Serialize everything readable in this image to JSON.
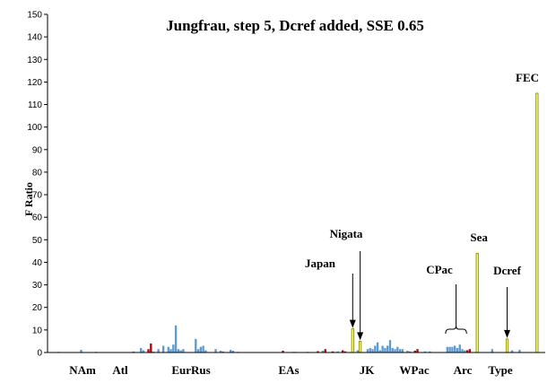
{
  "chart_data": {
    "type": "bar",
    "title": "Jungfrau, step 5, Dcref added, SSE 0.65",
    "ylabel": "F Ratio",
    "xlabel": "",
    "ylim": [
      0,
      150
    ],
    "yticks": [
      0,
      10,
      20,
      30,
      40,
      50,
      60,
      70,
      80,
      90,
      100,
      110,
      120,
      130,
      140,
      150
    ],
    "grid": false,
    "colors": {
      "blue": "#5b9bd5",
      "red": "#c00000",
      "yellow": "#ffff66",
      "yellow_edge": "#7f7f00"
    },
    "region_labels": [
      "NAm",
      "Atl",
      "EurRus",
      "EAs",
      "JK",
      "WPac",
      "Arc",
      "Type"
    ],
    "annotations": [
      "Japan",
      "Nigata",
      "CPac",
      "Sea",
      "Dcref",
      "FEC"
    ],
    "bars": [
      {
        "x": 3,
        "value": 0.3,
        "color": "blue"
      },
      {
        "x": 12,
        "value": 1.2,
        "color": "blue"
      },
      {
        "x": 18,
        "value": 0.3,
        "color": "blue"
      },
      {
        "x": 24,
        "value": 0.2,
        "color": "blue"
      },
      {
        "x": 33,
        "value": 0.5,
        "color": "blue"
      },
      {
        "x": 36,
        "value": 2.0,
        "color": "blue"
      },
      {
        "x": 37,
        "value": 1.0,
        "color": "blue"
      },
      {
        "x": 39,
        "value": 1.5,
        "color": "red"
      },
      {
        "x": 40,
        "value": 4.0,
        "color": "red"
      },
      {
        "x": 41,
        "value": 0.4,
        "color": "blue"
      },
      {
        "x": 43,
        "value": 1.5,
        "color": "blue"
      },
      {
        "x": 45,
        "value": 3.0,
        "color": "blue"
      },
      {
        "x": 47,
        "value": 2.5,
        "color": "blue"
      },
      {
        "x": 48,
        "value": 1.5,
        "color": "blue"
      },
      {
        "x": 49,
        "value": 3.5,
        "color": "blue"
      },
      {
        "x": 50,
        "value": 12.0,
        "color": "blue"
      },
      {
        "x": 51,
        "value": 1.5,
        "color": "blue"
      },
      {
        "x": 52,
        "value": 1.0,
        "color": "blue"
      },
      {
        "x": 53,
        "value": 1.5,
        "color": "blue"
      },
      {
        "x": 58,
        "value": 6.0,
        "color": "blue"
      },
      {
        "x": 59,
        "value": 1.5,
        "color": "blue"
      },
      {
        "x": 60,
        "value": 2.5,
        "color": "blue"
      },
      {
        "x": 61,
        "value": 3.0,
        "color": "blue"
      },
      {
        "x": 62,
        "value": 1.0,
        "color": "blue"
      },
      {
        "x": 66,
        "value": 1.5,
        "color": "blue"
      },
      {
        "x": 68,
        "value": 0.8,
        "color": "blue"
      },
      {
        "x": 69,
        "value": 0.5,
        "color": "blue"
      },
      {
        "x": 72,
        "value": 1.2,
        "color": "blue"
      },
      {
        "x": 73,
        "value": 0.8,
        "color": "blue"
      },
      {
        "x": 75,
        "value": 0.3,
        "color": "blue"
      },
      {
        "x": 93,
        "value": 0.8,
        "color": "red"
      },
      {
        "x": 97,
        "value": 0.3,
        "color": "blue"
      },
      {
        "x": 98,
        "value": 0.3,
        "color": "blue"
      },
      {
        "x": 103,
        "value": 0.3,
        "color": "blue"
      },
      {
        "x": 107,
        "value": 0.6,
        "color": "red"
      },
      {
        "x": 109,
        "value": 0.8,
        "color": "blue"
      },
      {
        "x": 110,
        "value": 1.5,
        "color": "red"
      },
      {
        "x": 113,
        "value": 0.5,
        "color": "red"
      },
      {
        "x": 115,
        "value": 0.5,
        "color": "blue"
      },
      {
        "x": 117,
        "value": 1.0,
        "color": "red"
      },
      {
        "x": 118,
        "value": 0.5,
        "color": "red"
      },
      {
        "x": 121,
        "value": 10.5,
        "color": "yellow"
      },
      {
        "x": 123,
        "value": 1.0,
        "color": "blue"
      },
      {
        "x": 124,
        "value": 5.0,
        "color": "yellow"
      },
      {
        "x": 127,
        "value": 1.5,
        "color": "blue"
      },
      {
        "x": 128,
        "value": 2.0,
        "color": "blue"
      },
      {
        "x": 129,
        "value": 1.5,
        "color": "blue"
      },
      {
        "x": 130,
        "value": 3.0,
        "color": "blue"
      },
      {
        "x": 131,
        "value": 4.5,
        "color": "blue"
      },
      {
        "x": 132,
        "value": 1.0,
        "color": "blue"
      },
      {
        "x": 133,
        "value": 3.0,
        "color": "blue"
      },
      {
        "x": 134,
        "value": 2.0,
        "color": "blue"
      },
      {
        "x": 135,
        "value": 3.0,
        "color": "blue"
      },
      {
        "x": 136,
        "value": 5.5,
        "color": "blue"
      },
      {
        "x": 137,
        "value": 2.0,
        "color": "blue"
      },
      {
        "x": 138,
        "value": 1.5,
        "color": "blue"
      },
      {
        "x": 139,
        "value": 2.5,
        "color": "blue"
      },
      {
        "x": 140,
        "value": 1.5,
        "color": "blue"
      },
      {
        "x": 141,
        "value": 1.5,
        "color": "blue"
      },
      {
        "x": 143,
        "value": 0.8,
        "color": "blue"
      },
      {
        "x": 144,
        "value": 0.5,
        "color": "blue"
      },
      {
        "x": 146,
        "value": 0.8,
        "color": "red"
      },
      {
        "x": 147,
        "value": 1.5,
        "color": "red"
      },
      {
        "x": 150,
        "value": 0.5,
        "color": "blue"
      },
      {
        "x": 152,
        "value": 0.5,
        "color": "blue"
      },
      {
        "x": 159,
        "value": 2.5,
        "color": "blue"
      },
      {
        "x": 160,
        "value": 2.5,
        "color": "blue"
      },
      {
        "x": 161,
        "value": 2.5,
        "color": "blue"
      },
      {
        "x": 162,
        "value": 3.0,
        "color": "blue"
      },
      {
        "x": 163,
        "value": 2.0,
        "color": "blue"
      },
      {
        "x": 164,
        "value": 3.5,
        "color": "blue"
      },
      {
        "x": 165,
        "value": 1.5,
        "color": "blue"
      },
      {
        "x": 166,
        "value": 1.0,
        "color": "blue"
      },
      {
        "x": 167,
        "value": 1.0,
        "color": "red"
      },
      {
        "x": 168,
        "value": 1.5,
        "color": "red"
      },
      {
        "x": 171,
        "value": 44.0,
        "color": "yellow"
      },
      {
        "x": 177,
        "value": 1.5,
        "color": "blue"
      },
      {
        "x": 183,
        "value": 6.0,
        "color": "yellow"
      },
      {
        "x": 185,
        "value": 1.0,
        "color": "blue"
      },
      {
        "x": 188,
        "value": 1.2,
        "color": "blue"
      },
      {
        "x": 195,
        "value": 115.0,
        "color": "yellow"
      }
    ],
    "x_range": [
      0,
      198
    ]
  }
}
